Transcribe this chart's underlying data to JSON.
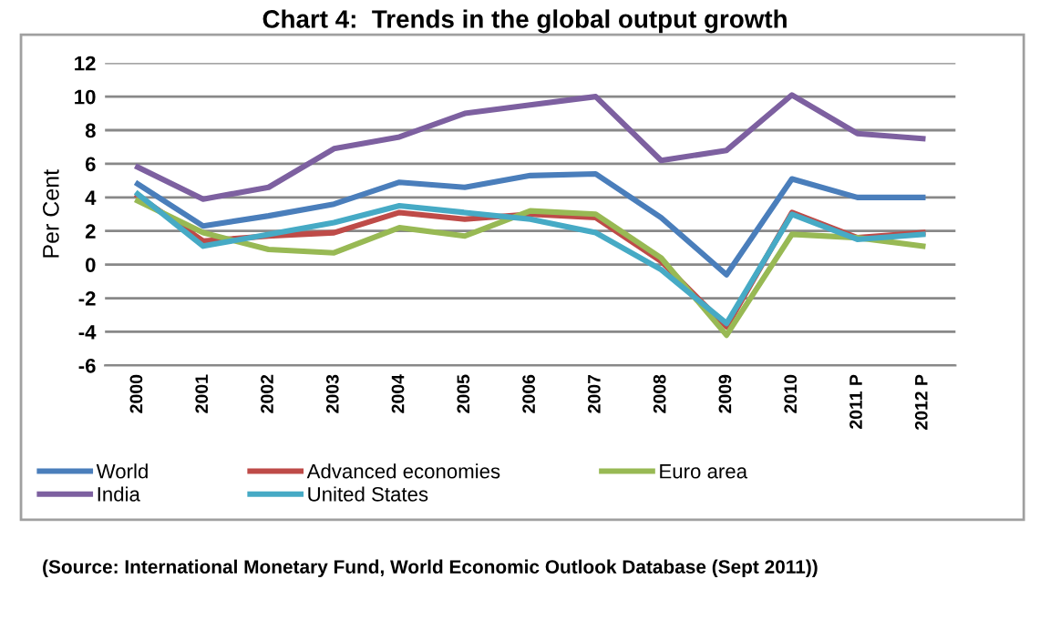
{
  "chart_data": {
    "type": "line",
    "title": "Chart 4:  Trends in the global output growth",
    "ylabel": "Per Cent",
    "categories": [
      "2000",
      "2001",
      "2002",
      "2003",
      "2004",
      "2005",
      "2006",
      "2007",
      "2008",
      "2009",
      "2010",
      "2011 P",
      "2012 P"
    ],
    "series": [
      {
        "name": "World",
        "color": "#4a7ebb",
        "values": [
          4.8,
          2.3,
          2.9,
          3.6,
          4.9,
          4.6,
          5.3,
          5.4,
          2.8,
          -0.6,
          5.1,
          4.0,
          4.0
        ]
      },
      {
        "name": "Advanced economies",
        "color": "#be4b48",
        "values": [
          4.1,
          1.4,
          1.7,
          1.9,
          3.1,
          2.7,
          3.0,
          2.8,
          0.2,
          -3.7,
          3.1,
          1.6,
          1.9
        ]
      },
      {
        "name": "Euro area",
        "color": "#98b954",
        "values": [
          3.8,
          1.9,
          0.9,
          0.7,
          2.2,
          1.7,
          3.2,
          3.0,
          0.4,
          -4.2,
          1.8,
          1.6,
          1.1
        ]
      },
      {
        "name": "India",
        "color": "#7d60a0",
        "values": [
          5.8,
          3.9,
          4.6,
          6.9,
          7.6,
          9.0,
          9.5,
          10.0,
          6.2,
          6.8,
          10.1,
          7.8,
          7.5
        ]
      },
      {
        "name": "United States",
        "color": "#46aac5",
        "values": [
          4.2,
          1.1,
          1.8,
          2.5,
          3.5,
          3.1,
          2.7,
          1.9,
          -0.3,
          -3.5,
          3.0,
          1.5,
          1.8
        ]
      }
    ],
    "ylim": [
      -6,
      12
    ],
    "yticks": [
      -6,
      -4,
      -2,
      0,
      2,
      4,
      6,
      8,
      10,
      12
    ],
    "grid": "y",
    "legend": "bottom",
    "marker": "none",
    "line_style": "solid",
    "annotations": [
      "(Source: International Monetary Fund, World Economic Outlook Database (Sept 2011))"
    ]
  }
}
